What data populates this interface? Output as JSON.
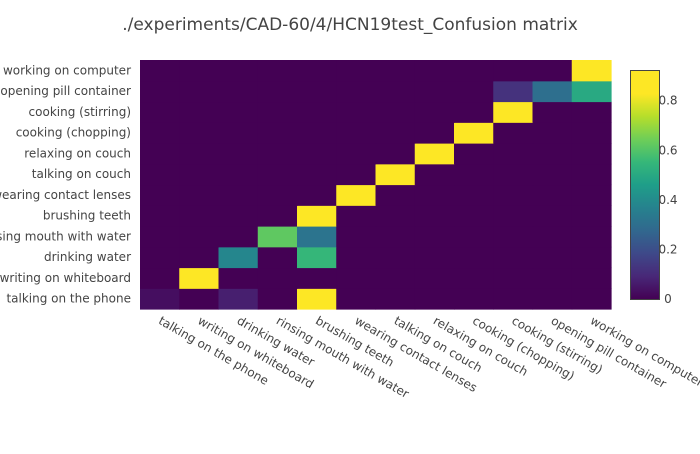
{
  "chart_data": {
    "type": "heatmap",
    "title": "./experiments/CAD-60/4/HCN19test_Confusion matrix",
    "xlabel": "",
    "ylabel": "",
    "x_categories": [
      "talking on the phone",
      "writing on whiteboard",
      "drinking water",
      "rinsing mouth with water",
      "brushing teeth",
      "wearing contact lenses",
      "talking on couch",
      "relaxing on couch",
      "cooking (chopping)",
      "cooking (stirring)",
      "opening pill container",
      "working on computer"
    ],
    "y_categories": [
      "talking on the phone",
      "writing on whiteboard",
      "drinking water",
      "rinsing mouth with water",
      "brushing teeth",
      "wearing contact lenses",
      "talking on couch",
      "relaxing on couch",
      "cooking (chopping)",
      "cooking (stirring)",
      "opening pill container",
      "working on computer"
    ],
    "z": [
      [
        0.03,
        0.0,
        0.07,
        0.0,
        0.9,
        0.0,
        0.0,
        0.0,
        0.0,
        0.0,
        0.0,
        0.0
      ],
      [
        0.0,
        0.92,
        0.0,
        0.0,
        0.0,
        0.0,
        0.0,
        0.0,
        0.0,
        0.0,
        0.0,
        0.0
      ],
      [
        0.0,
        0.0,
        0.38,
        0.0,
        0.55,
        0.0,
        0.0,
        0.0,
        0.0,
        0.0,
        0.0,
        0.0
      ],
      [
        0.0,
        0.0,
        0.0,
        0.62,
        0.32,
        0.0,
        0.0,
        0.0,
        0.0,
        0.0,
        0.0,
        0.0
      ],
      [
        0.0,
        0.0,
        0.0,
        0.0,
        0.92,
        0.0,
        0.0,
        0.0,
        0.0,
        0.0,
        0.0,
        0.0
      ],
      [
        0.0,
        0.0,
        0.0,
        0.0,
        0.0,
        0.92,
        0.0,
        0.0,
        0.0,
        0.0,
        0.0,
        0.0
      ],
      [
        0.0,
        0.0,
        0.0,
        0.0,
        0.0,
        0.0,
        0.92,
        0.0,
        0.0,
        0.0,
        0.0,
        0.0
      ],
      [
        0.0,
        0.0,
        0.0,
        0.0,
        0.0,
        0.0,
        0.0,
        0.92,
        0.0,
        0.0,
        0.0,
        0.0
      ],
      [
        0.0,
        0.0,
        0.0,
        0.0,
        0.0,
        0.0,
        0.0,
        0.0,
        0.92,
        0.0,
        0.0,
        0.0
      ],
      [
        0.0,
        0.0,
        0.0,
        0.0,
        0.0,
        0.0,
        0.0,
        0.0,
        0.0,
        0.92,
        0.0,
        0.0
      ],
      [
        0.0,
        0.0,
        0.0,
        0.0,
        0.0,
        0.0,
        0.0,
        0.0,
        0.0,
        0.12,
        0.3,
        0.5
      ],
      [
        0.0,
        0.0,
        0.0,
        0.0,
        0.0,
        0.0,
        0.0,
        0.0,
        0.0,
        0.0,
        0.0,
        0.92
      ]
    ],
    "zmin": 0,
    "zmax": 0.92,
    "colorscale": "Viridis",
    "colorbar_ticks": [
      0,
      0.2,
      0.4,
      0.6,
      0.8
    ],
    "colorbar_tick_labels": [
      "0",
      "0.2",
      "0.4",
      "0.6",
      "0.8"
    ],
    "colorbar_placement": "right",
    "grid": false
  }
}
